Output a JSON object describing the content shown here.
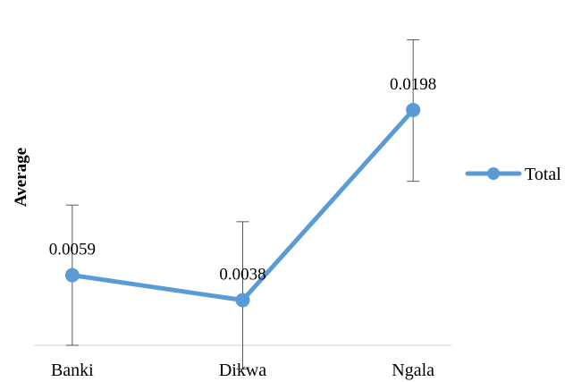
{
  "chart_data": {
    "type": "line",
    "categories": [
      "Banki",
      "Dikwa",
      "Ngala"
    ],
    "series": [
      {
        "name": "Total",
        "values": [
          0.0059,
          0.0038,
          0.0198
        ],
        "error_upper": [
          0.0118,
          0.0104,
          0.0257
        ],
        "error_lower": [
          0.0,
          -0.002,
          0.0138
        ],
        "color": "#5b9bd5"
      }
    ],
    "data_labels": [
      "0.0059",
      "0.0038",
      "0.0198"
    ],
    "ylabel": "Average",
    "ylim": [
      0.0,
      0.028
    ],
    "grid": false,
    "legend_position": "right",
    "error_bar_color": "#595959",
    "axis_color": "#d9d9d9"
  }
}
